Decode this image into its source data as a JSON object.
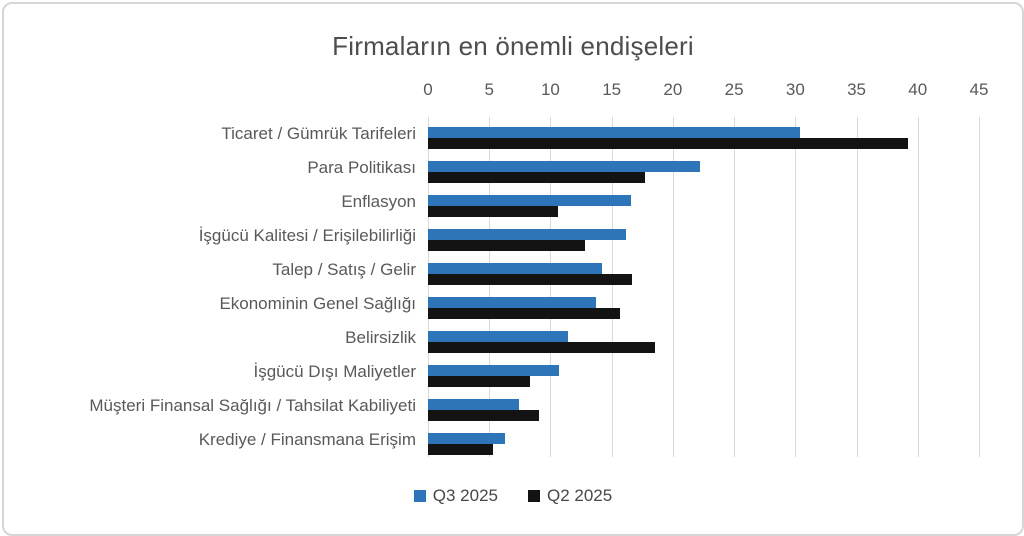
{
  "title": "Firmaların en önemli endişeleri",
  "legend": [
    {
      "label": "Q3 2025",
      "color": "#2e74b8"
    },
    {
      "label": "Q2 2025",
      "color": "#131313"
    }
  ],
  "chart_data": {
    "type": "bar",
    "orientation": "horizontal",
    "title": "Firmaların en önemli endişeleri",
    "categories": [
      "Ticaret / Gümrük Tarifeleri",
      "Para Politikası",
      "Enflasyon",
      "İşgücü Kalitesi / Erişilebilirliği",
      "Talep / Satış / Gelir",
      "Ekonominin Genel Sağlığı",
      "Belirsizlik",
      "İşgücü Dışı Maliyetler",
      "Müşteri Finansal Sağlığı / Tahsilat Kabiliyeti",
      "Krediye / Finansmana Erişim"
    ],
    "series": [
      {
        "name": "Q3 2025",
        "color": "#2e74b8",
        "values": [
          30.4,
          22.2,
          16.6,
          16.2,
          14.2,
          13.7,
          11.4,
          10.7,
          7.4,
          6.3
        ]
      },
      {
        "name": "Q2 2025",
        "color": "#131313",
        "values": [
          39.2,
          17.7,
          10.6,
          12.8,
          16.7,
          15.7,
          18.5,
          8.3,
          9.1,
          5.3
        ]
      }
    ],
    "xlim": [
      0,
      45
    ],
    "x_ticks": [
      0,
      5,
      10,
      15,
      20,
      25,
      30,
      35,
      40,
      45
    ],
    "axis_position": "top",
    "grid": "vertical",
    "legend_position": "bottom",
    "styles": {
      "gridline_color": "#d9d9d9",
      "tick_label_color": "#595959",
      "category_label_color": "#595959",
      "title_color": "#4d4d4d",
      "figure_border_color": "#d6d6d6",
      "background": "#ffffff"
    }
  }
}
